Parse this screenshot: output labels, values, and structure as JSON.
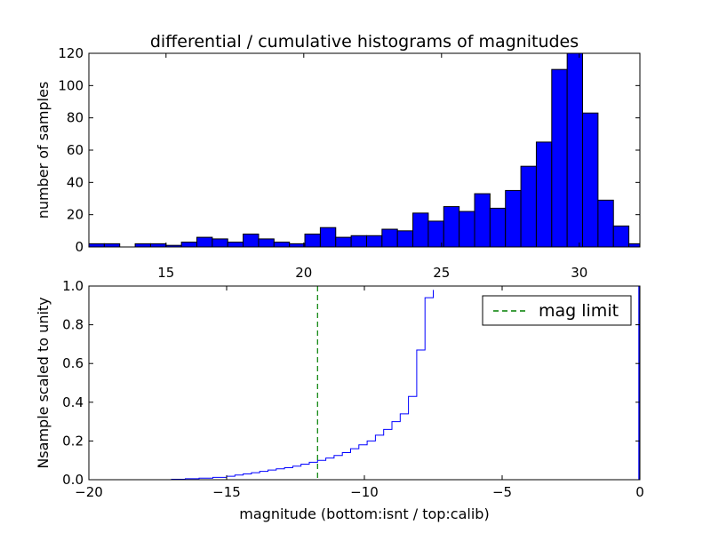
{
  "chart_data": [
    {
      "type": "bar",
      "title": "differential / cumulative histograms of magnitudes",
      "xlabel": "",
      "ylabel": "number of samples",
      "xlim": [
        12.2,
        32.2
      ],
      "ylim": [
        0,
        120
      ],
      "xticks": [
        15,
        20,
        25,
        30
      ],
      "yticks": [
        0,
        20,
        40,
        60,
        80,
        100,
        120
      ],
      "bin_width": 0.56,
      "bars": [
        {
          "x": 12.2,
          "value": 2
        },
        {
          "x": 12.76,
          "value": 2
        },
        {
          "x": 13.32,
          "value": 0
        },
        {
          "x": 13.88,
          "value": 2
        },
        {
          "x": 14.44,
          "value": 2
        },
        {
          "x": 15.0,
          "value": 1
        },
        {
          "x": 15.56,
          "value": 3
        },
        {
          "x": 16.12,
          "value": 6
        },
        {
          "x": 16.68,
          "value": 5
        },
        {
          "x": 17.24,
          "value": 3
        },
        {
          "x": 17.8,
          "value": 8
        },
        {
          "x": 18.36,
          "value": 5
        },
        {
          "x": 18.92,
          "value": 3
        },
        {
          "x": 19.48,
          "value": 2
        },
        {
          "x": 20.04,
          "value": 8
        },
        {
          "x": 20.6,
          "value": 12
        },
        {
          "x": 21.16,
          "value": 6
        },
        {
          "x": 21.72,
          "value": 7
        },
        {
          "x": 22.28,
          "value": 7
        },
        {
          "x": 22.84,
          "value": 11
        },
        {
          "x": 23.4,
          "value": 10
        },
        {
          "x": 23.96,
          "value": 21
        },
        {
          "x": 24.52,
          "value": 16
        },
        {
          "x": 25.08,
          "value": 25
        },
        {
          "x": 25.64,
          "value": 22
        },
        {
          "x": 26.2,
          "value": 33
        },
        {
          "x": 26.76,
          "value": 24
        },
        {
          "x": 27.32,
          "value": 35
        },
        {
          "x": 27.88,
          "value": 50
        },
        {
          "x": 28.44,
          "value": 65
        },
        {
          "x": 29.0,
          "value": 110
        },
        {
          "x": 29.56,
          "value": 120
        },
        {
          "x": 30.12,
          "value": 83
        },
        {
          "x": 30.68,
          "value": 29
        },
        {
          "x": 31.24,
          "value": 13
        },
        {
          "x": 31.8,
          "value": 2
        }
      ],
      "bar_color": "#0000ff",
      "grid": false
    },
    {
      "type": "line",
      "title": "",
      "xlabel": "magnitude (bottom:isnt / top:calib)",
      "ylabel": "Nsample scaled to unity",
      "xlim": [
        -20,
        0
      ],
      "ylim": [
        0,
        1
      ],
      "xticks": [
        -20,
        -15,
        -10,
        -5,
        0
      ],
      "yticks": [
        0.0,
        0.2,
        0.4,
        0.6,
        0.8,
        1.0
      ],
      "xtick_labels": [
        "−20",
        "−15",
        "−10",
        "−5",
        "0"
      ],
      "ytick_labels": [
        "0.0",
        "0.2",
        "0.4",
        "0.6",
        "0.8",
        "1.0"
      ],
      "step_x": [
        -20,
        -17,
        -16.5,
        -16,
        -15.5,
        -15,
        -14.7,
        -14.4,
        -14.1,
        -13.8,
        -13.5,
        -13.2,
        -12.9,
        -12.6,
        -12.3,
        -12.0,
        -11.7,
        -11.4,
        -11.1,
        -10.8,
        -10.5,
        -10.2,
        -9.9,
        -9.6,
        -9.3,
        -9.0,
        -8.7,
        -8.4,
        -8.1,
        -7.8,
        -7.5
      ],
      "step_y": [
        0.0,
        0.002,
        0.005,
        0.008,
        0.012,
        0.018,
        0.024,
        0.03,
        0.036,
        0.043,
        0.05,
        0.056,
        0.062,
        0.07,
        0.08,
        0.09,
        0.1,
        0.112,
        0.125,
        0.14,
        0.16,
        0.18,
        0.2,
        0.23,
        0.26,
        0.3,
        0.34,
        0.43,
        0.67,
        0.94,
        0.98
      ],
      "series_color": "#0000ff",
      "vline": {
        "x": -11.7,
        "color": "#007f00",
        "style": "dashed"
      },
      "legend": {
        "position": "top-right",
        "entries": [
          {
            "label": "mag limit",
            "color": "#007f00",
            "style": "dashed"
          }
        ]
      },
      "grid": false
    }
  ]
}
